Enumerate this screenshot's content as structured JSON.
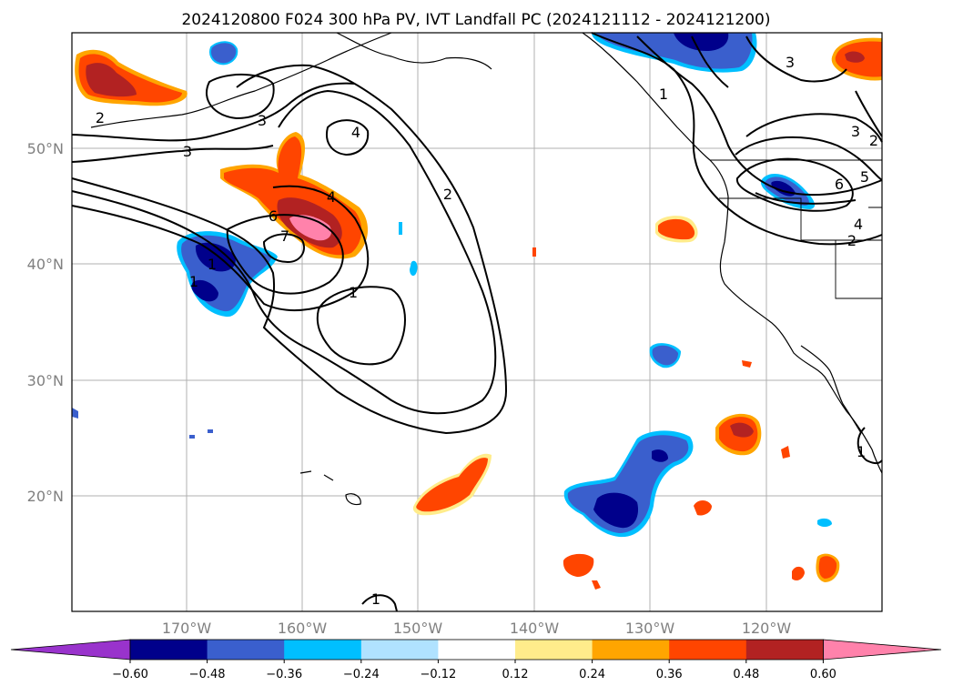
{
  "title": "2024120800 F024 300 hPa PV, IVT Landfall PC (2024121112 - 2024121200)",
  "map": {
    "lon_range": [
      -180,
      -110
    ],
    "lat_range": [
      10,
      60
    ],
    "lat_labels": [
      "50°N",
      "40°N",
      "30°N",
      "20°N"
    ],
    "lon_labels": [
      "170°W",
      "160°W",
      "150°W",
      "140°W",
      "130°W",
      "120°W"
    ],
    "contour_labels": [
      "2",
      "3",
      "3",
      "4",
      "4",
      "6",
      "7",
      "1",
      "1",
      "2",
      "1",
      "1",
      "3",
      "3",
      "2",
      "6",
      "5",
      "4",
      "2",
      "1",
      "1"
    ]
  },
  "colorbar": {
    "tick_labels": [
      "−0.60",
      "−0.48",
      "−0.36",
      "−0.24",
      "−0.12",
      "0.12",
      "0.24",
      "0.36",
      "0.48",
      "0.60"
    ],
    "colors": [
      "#9933cc",
      "#00008b",
      "#3a5fcd",
      "#00bfff",
      "#b0e2ff",
      "#ffffff",
      "#ffec8b",
      "#ffa500",
      "#ff4500",
      "#b22222",
      "#ff82ab"
    ]
  }
}
